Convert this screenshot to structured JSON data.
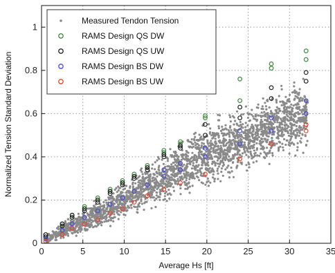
{
  "colors": {
    "measured": "#8a8a8a",
    "qs_dw": "#3f8a3f",
    "qs_uw": "#222222",
    "bs_dw": "#4a4ad8",
    "bs_uw": "#e8442a",
    "grid": "#999999",
    "axis": "#111111"
  },
  "chart_data": {
    "type": "scatter",
    "title": "",
    "xlabel": "Average Hs [ft]",
    "ylabel": "Normalized Tension Standard Deviation",
    "xlim": [
      0,
      35
    ],
    "ylim": [
      0,
      1.1
    ],
    "xticks": [
      0,
      5,
      10,
      15,
      20,
      25,
      30,
      35
    ],
    "yticks": [
      0,
      0.2,
      0.4,
      0.6,
      0.8,
      1
    ],
    "grid": true,
    "legend_position": "top-left",
    "series": [
      {
        "name": "Measured Tendon Tension",
        "marker": "dot",
        "color_key": "measured",
        "band": [
          {
            "x": 0.5,
            "lo": 0.0,
            "hi": 0.04
          },
          {
            "x": 2,
            "lo": 0.01,
            "hi": 0.08
          },
          {
            "x": 4,
            "lo": 0.03,
            "hi": 0.14
          },
          {
            "x": 6,
            "lo": 0.05,
            "hi": 0.19
          },
          {
            "x": 8,
            "lo": 0.07,
            "hi": 0.24
          },
          {
            "x": 10,
            "lo": 0.1,
            "hi": 0.29
          },
          {
            "x": 12,
            "lo": 0.13,
            "hi": 0.35
          },
          {
            "x": 14,
            "lo": 0.16,
            "hi": 0.4
          },
          {
            "x": 16,
            "lo": 0.2,
            "hi": 0.46
          },
          {
            "x": 18,
            "lo": 0.22,
            "hi": 0.52
          },
          {
            "x": 20,
            "lo": 0.24,
            "hi": 0.58
          },
          {
            "x": 22,
            "lo": 0.28,
            "hi": 0.6
          },
          {
            "x": 24,
            "lo": 0.3,
            "hi": 0.64
          },
          {
            "x": 26,
            "lo": 0.33,
            "hi": 0.67
          },
          {
            "x": 28,
            "lo": 0.36,
            "hi": 0.72
          },
          {
            "x": 30,
            "lo": 0.4,
            "hi": 0.75
          },
          {
            "x": 32,
            "lo": 0.42,
            "hi": 0.8
          }
        ]
      },
      {
        "name": "RAMS Design QS DW",
        "marker": "circle",
        "color_key": "qs_dw",
        "x": [
          0.5,
          0.5,
          2.5,
          2.5,
          3.7,
          3.7,
          5.2,
          5.2,
          6.8,
          6.8,
          8.3,
          8.3,
          9.8,
          9.8,
          11.2,
          11.2,
          12.8,
          12.8,
          14.8,
          14.8,
          16.8,
          16.8,
          19.8,
          19.8,
          24.0,
          24.0,
          27.8,
          27.8,
          32.0,
          32.0
        ],
        "y": [
          0.03,
          0.04,
          0.08,
          0.09,
          0.12,
          0.13,
          0.16,
          0.17,
          0.2,
          0.21,
          0.24,
          0.25,
          0.28,
          0.29,
          0.31,
          0.32,
          0.35,
          0.36,
          0.42,
          0.43,
          0.46,
          0.47,
          0.58,
          0.59,
          0.66,
          0.76,
          0.81,
          0.83,
          0.85,
          0.89
        ]
      },
      {
        "name": "RAMS Design QS UW",
        "marker": "circle",
        "color_key": "qs_uw",
        "x": [
          0.5,
          0.5,
          2.5,
          2.5,
          3.7,
          3.7,
          5.2,
          5.2,
          6.8,
          6.8,
          8.3,
          8.3,
          9.8,
          9.8,
          11.2,
          11.2,
          12.8,
          12.8,
          14.8,
          14.8,
          16.8,
          16.8,
          19.8,
          19.8,
          24.0,
          24.0,
          27.8,
          27.8,
          32.0,
          32.0
        ],
        "y": [
          0.03,
          0.04,
          0.08,
          0.09,
          0.12,
          0.13,
          0.15,
          0.16,
          0.19,
          0.2,
          0.23,
          0.24,
          0.27,
          0.28,
          0.3,
          0.31,
          0.34,
          0.35,
          0.4,
          0.41,
          0.44,
          0.45,
          0.5,
          0.55,
          0.58,
          0.63,
          0.67,
          0.72,
          0.75,
          0.79
        ]
      },
      {
        "name": "RAMS Design BS DW",
        "marker": "circle",
        "color_key": "bs_dw",
        "x": [
          0.5,
          2.5,
          3.7,
          5.2,
          6.8,
          8.3,
          9.8,
          11.2,
          12.8,
          14.8,
          14.8,
          16.8,
          16.8,
          19.8,
          19.8,
          24.0,
          24.0,
          27.8,
          27.8,
          32.0,
          32.0
        ],
        "y": [
          0.02,
          0.06,
          0.09,
          0.12,
          0.15,
          0.18,
          0.21,
          0.24,
          0.27,
          0.31,
          0.34,
          0.34,
          0.37,
          0.4,
          0.44,
          0.46,
          0.52,
          0.52,
          0.58,
          0.6,
          0.66
        ]
      },
      {
        "name": "RAMS Design BS UW",
        "marker": "circle",
        "color_key": "bs_uw",
        "x": [
          0.5,
          2.5,
          3.7,
          5.2,
          6.8,
          8.3,
          9.8,
          11.2,
          12.8,
          14.8,
          16.8,
          19.8,
          24.0,
          27.8,
          32.0,
          32.0
        ],
        "y": [
          0.01,
          0.04,
          0.07,
          0.09,
          0.11,
          0.14,
          0.16,
          0.19,
          0.22,
          0.25,
          0.28,
          0.32,
          0.39,
          0.46,
          0.52,
          0.55
        ]
      }
    ]
  }
}
